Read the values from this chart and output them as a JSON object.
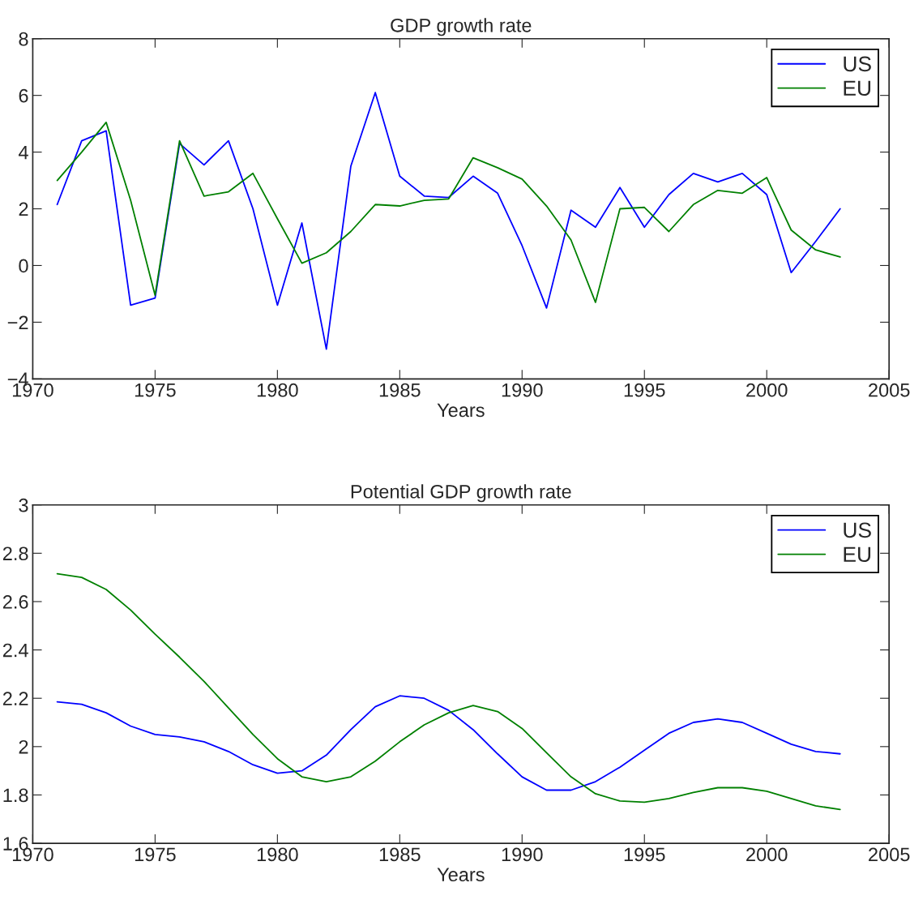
{
  "chart_data": [
    {
      "type": "line",
      "title": "GDP growth rate",
      "xlabel": "Years",
      "x": [
        1971,
        1972,
        1973,
        1974,
        1975,
        1976,
        1977,
        1978,
        1979,
        1980,
        1981,
        1982,
        1983,
        1984,
        1985,
        1986,
        1987,
        1988,
        1989,
        1990,
        1991,
        1992,
        1993,
        1994,
        1995,
        1996,
        1997,
        1998,
        1999,
        2000,
        2001,
        2002,
        2003
      ],
      "series": [
        {
          "name": "US",
          "color": "#0000ff",
          "values": [
            2.15,
            4.4,
            4.75,
            -1.4,
            -1.15,
            4.3,
            3.55,
            4.4,
            2.0,
            -1.4,
            1.5,
            -2.95,
            3.5,
            6.1,
            3.15,
            2.45,
            2.4,
            3.15,
            2.55,
            0.7,
            -1.5,
            1.95,
            1.35,
            2.75,
            1.35,
            2.5,
            3.25,
            2.95,
            3.25,
            2.5,
            -0.25,
            0.85,
            2.0
          ]
        },
        {
          "name": "EU",
          "color": "#008000",
          "values": [
            3.0,
            4.0,
            5.05,
            2.3,
            -1.05,
            4.4,
            2.45,
            2.6,
            3.25,
            1.65,
            0.08,
            0.45,
            1.2,
            2.15,
            2.1,
            2.3,
            2.35,
            3.8,
            3.45,
            3.05,
            2.1,
            0.9,
            -1.3,
            2.0,
            2.05,
            1.2,
            2.15,
            2.65,
            2.55,
            3.1,
            1.25,
            0.55,
            0.3
          ]
        }
      ],
      "xlim": [
        1970,
        2005
      ],
      "xticks": [
        1970,
        1975,
        1980,
        1985,
        1990,
        1995,
        2000,
        2005
      ],
      "ylim": [
        -4,
        8
      ],
      "yticks": [
        {
          "value": -4,
          "label": "−4"
        },
        {
          "value": -2,
          "label": "−2"
        },
        0,
        2,
        4,
        6,
        8
      ],
      "legend": "top right",
      "grid": false
    },
    {
      "type": "line",
      "title": "Potential GDP growth rate",
      "xlabel": "Years",
      "x": [
        1971,
        1972,
        1973,
        1974,
        1975,
        1976,
        1977,
        1978,
        1979,
        1980,
        1981,
        1982,
        1983,
        1984,
        1985,
        1986,
        1987,
        1988,
        1989,
        1990,
        1991,
        1992,
        1993,
        1994,
        1995,
        1996,
        1997,
        1998,
        1999,
        2000,
        2001,
        2002,
        2003
      ],
      "series": [
        {
          "name": "US",
          "color": "#0000ff",
          "values": [
            2.185,
            2.175,
            2.14,
            2.085,
            2.05,
            2.04,
            2.02,
            1.98,
            1.925,
            1.89,
            1.9,
            1.965,
            2.07,
            2.165,
            2.21,
            2.2,
            2.15,
            2.07,
            1.97,
            1.875,
            1.82,
            1.82,
            1.855,
            1.915,
            1.985,
            2.055,
            2.1,
            2.115,
            2.1,
            2.055,
            2.01,
            1.98,
            1.97
          ]
        },
        {
          "name": "EU",
          "color": "#008000",
          "values": [
            2.715,
            2.7,
            2.65,
            2.565,
            2.465,
            2.37,
            2.27,
            2.16,
            2.05,
            1.95,
            1.875,
            1.855,
            1.875,
            1.94,
            2.02,
            2.09,
            2.14,
            2.17,
            2.145,
            2.075,
            1.975,
            1.875,
            1.805,
            1.775,
            1.77,
            1.785,
            1.81,
            1.83,
            1.83,
            1.815,
            1.785,
            1.755,
            1.74
          ]
        }
      ],
      "xlim": [
        1970,
        2005
      ],
      "xticks": [
        1970,
        1975,
        1980,
        1985,
        1990,
        1995,
        2000,
        2005
      ],
      "ylim": [
        1.6,
        3
      ],
      "yticks": [
        1.6,
        1.8,
        2,
        2.2,
        2.4,
        2.6,
        2.8,
        3
      ],
      "legend": "top right",
      "grid": false
    }
  ]
}
